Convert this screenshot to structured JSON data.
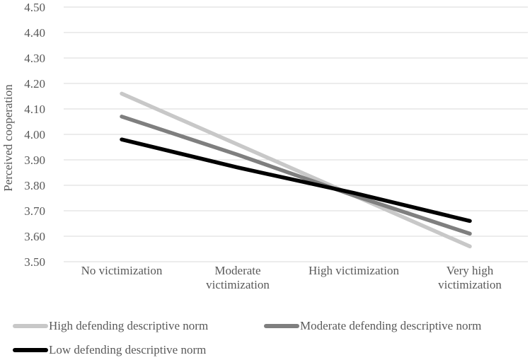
{
  "chart_data": {
    "type": "line",
    "title": "",
    "xlabel": "",
    "ylabel": "Perceived cooperation",
    "categories": [
      "No victimization",
      "Moderate victimization",
      "High victimization",
      "Very high victimization"
    ],
    "category_label_lines": [
      [
        "No victimization"
      ],
      [
        "Moderate",
        "victimization"
      ],
      [
        "High victimization"
      ],
      [
        "Very high",
        "victimization"
      ]
    ],
    "series": [
      {
        "name": "High defending descriptive norm",
        "color": "#c8c8c8",
        "values": [
          4.16,
          3.96,
          3.76,
          3.56
        ]
      },
      {
        "name": "Moderate defending descriptive norm",
        "color": "#7f7f7f",
        "values": [
          4.07,
          3.92,
          3.76,
          3.61
        ]
      },
      {
        "name": "Low defending descriptive norm",
        "color": "#000000",
        "values": [
          3.98,
          3.87,
          3.77,
          3.66
        ]
      }
    ],
    "ylim": [
      3.5,
      4.5
    ],
    "ytick_step": 0.1,
    "ytick_labels": [
      "3.50",
      "3.60",
      "3.70",
      "3.80",
      "3.90",
      "4.00",
      "4.10",
      "4.20",
      "4.30",
      "4.40",
      "4.50"
    ],
    "grid": true,
    "legend_position": "bottom",
    "colors": {
      "grid": "#d9d9d9",
      "text": "#595959",
      "background": "#ffffff"
    }
  }
}
